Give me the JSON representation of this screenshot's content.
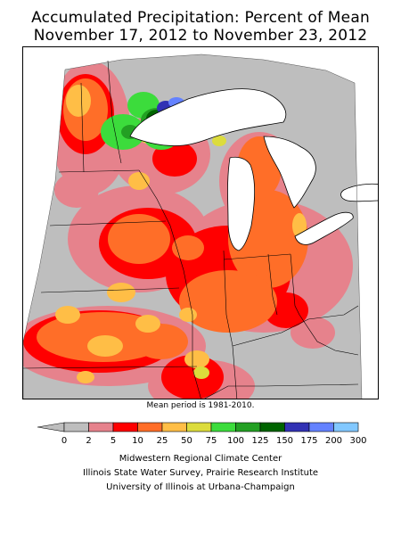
{
  "title": {
    "line1": "Accumulated Precipitation: Percent of Mean",
    "line2": "November 17, 2012 to November 23, 2012"
  },
  "note": "Mean period is 1981-2010.",
  "legend": {
    "colors": [
      "#bebebe",
      "#e6828c",
      "#ff0000",
      "#ff6e28",
      "#ffbe46",
      "#dcdc3c",
      "#3cdc3c",
      "#23a023",
      "#006400",
      "#3232b4",
      "#6482ff",
      "#82c8ff"
    ],
    "labels": [
      "0",
      "2",
      "5",
      "10",
      "25",
      "50",
      "75",
      "100",
      "125",
      "150",
      "175",
      "200",
      "300"
    ],
    "below_color": "#bebebe"
  },
  "footer": {
    "line1": "Midwestern Regional Climate Center",
    "line2": "Illinois State Water Survey, Prairie Research Institute",
    "line3": "University of Illinois at Urbana-Champaign"
  }
}
